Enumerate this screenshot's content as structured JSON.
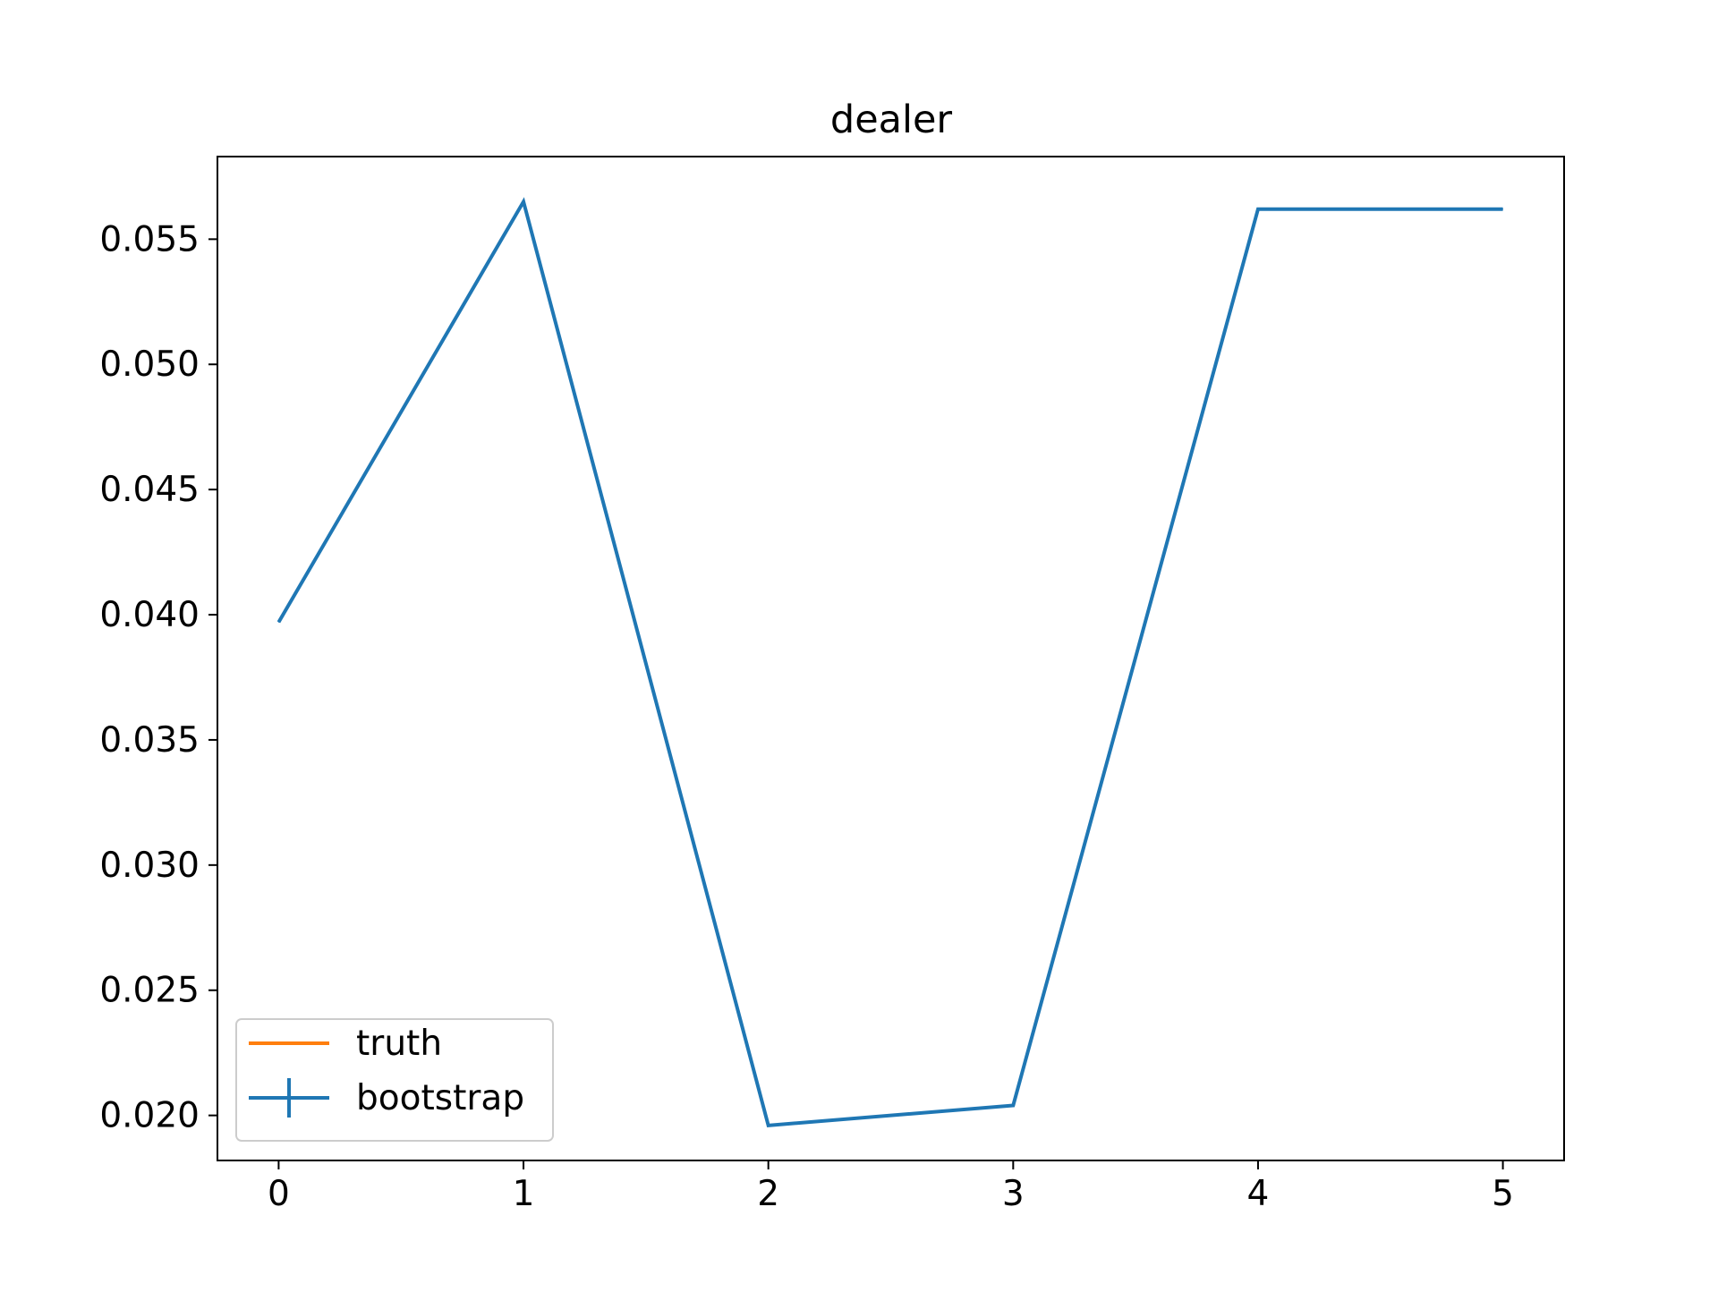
{
  "chart_data": {
    "type": "line",
    "title": "dealer",
    "xlabel": "",
    "ylabel": "",
    "xlim": [
      -0.25,
      5.25
    ],
    "ylim": [
      0.0182,
      0.0583
    ],
    "x_ticks": [
      0,
      1,
      2,
      3,
      4,
      5
    ],
    "x_tick_labels": [
      "0",
      "1",
      "2",
      "3",
      "4",
      "5"
    ],
    "y_ticks": [
      0.02,
      0.025,
      0.03,
      0.035,
      0.04,
      0.045,
      0.05,
      0.055
    ],
    "y_tick_labels": [
      "0.020",
      "0.025",
      "0.030",
      "0.035",
      "0.040",
      "0.045",
      "0.050",
      "0.055"
    ],
    "grid": false,
    "legend_position": "lower left",
    "series": [
      {
        "name": "truth",
        "color": "#ff7f0e",
        "x": [],
        "values": []
      },
      {
        "name": "bootstrap",
        "color": "#1f77b4",
        "errorbar": true,
        "x": [
          0,
          1,
          2,
          3,
          4,
          5
        ],
        "values": [
          0.0397,
          0.0565,
          0.0196,
          0.0204,
          0.0562,
          0.0562
        ]
      }
    ]
  }
}
